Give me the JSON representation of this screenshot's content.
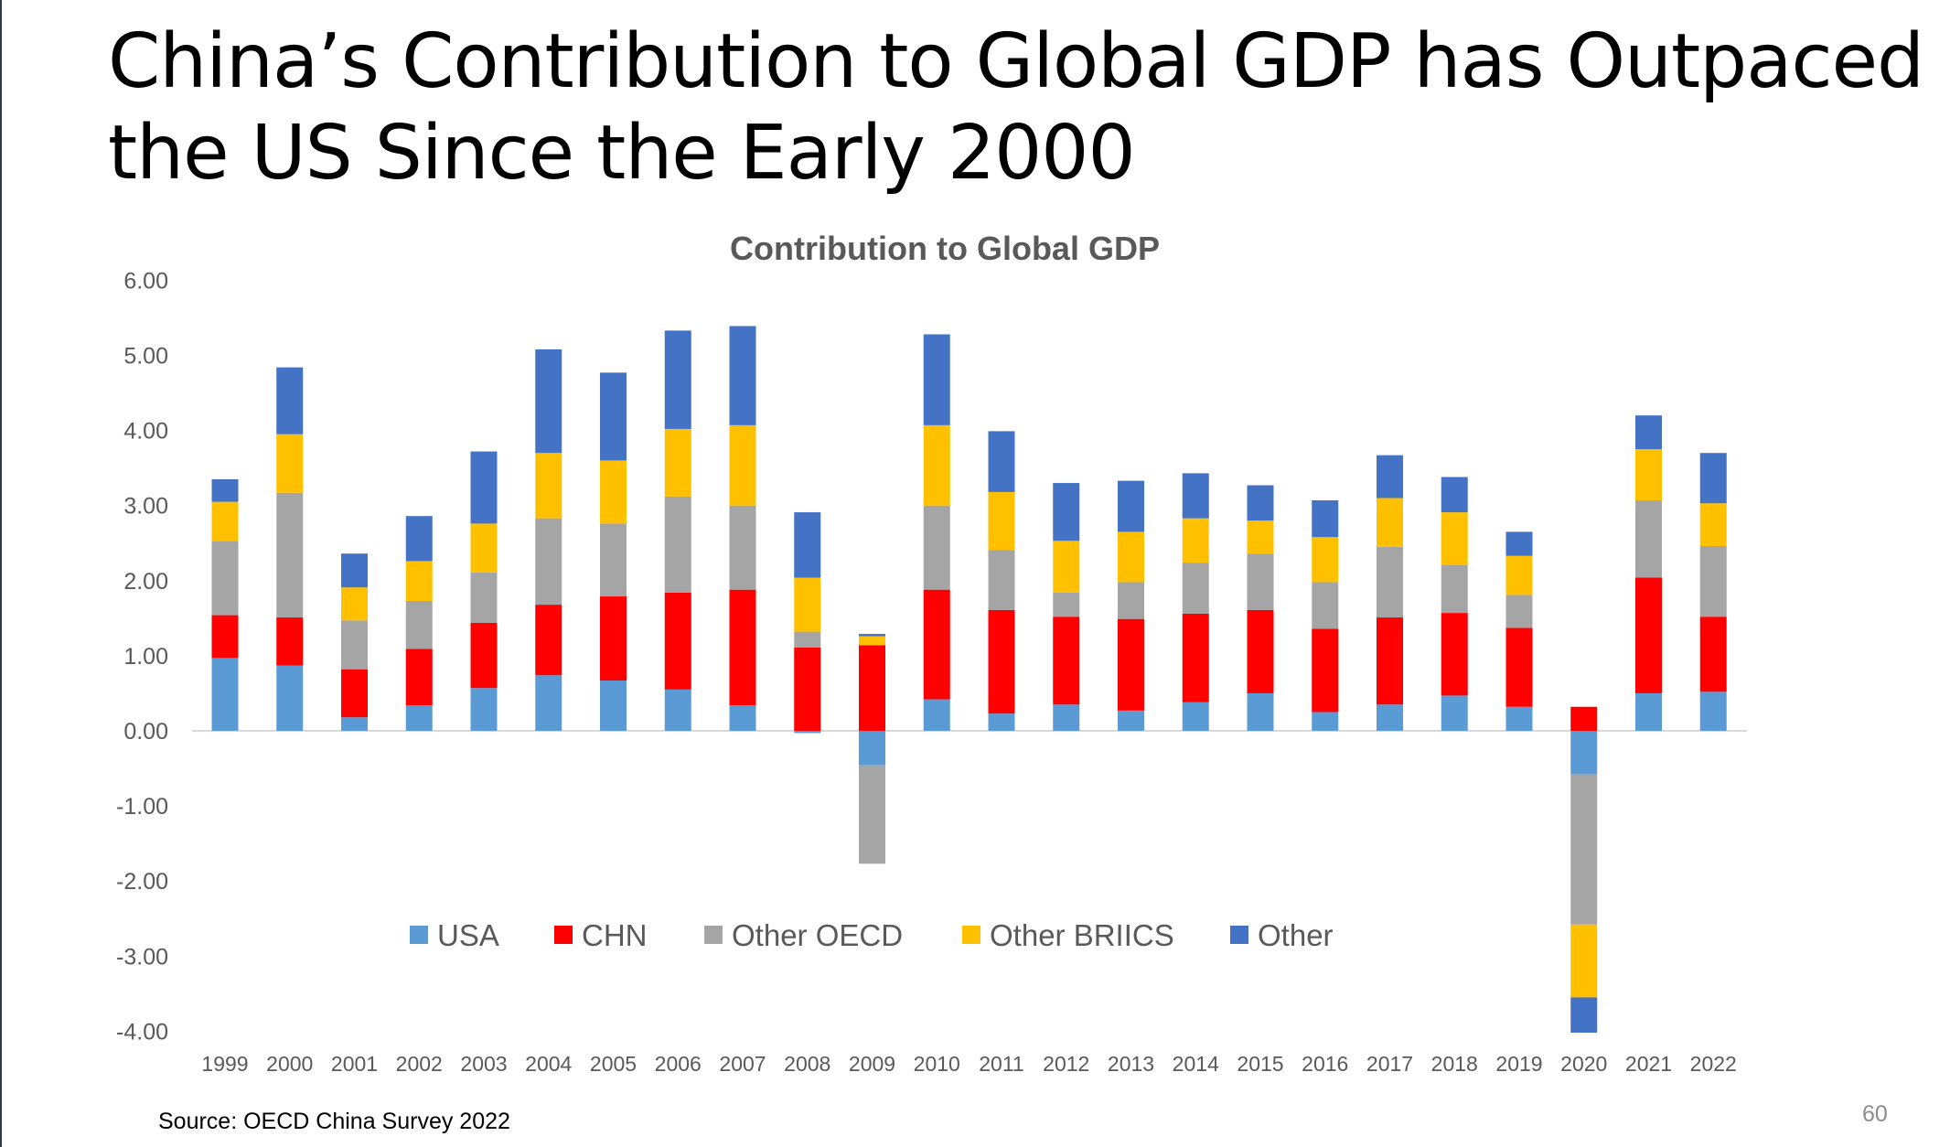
{
  "slide": {
    "title_line1": "China’s Contribution to Global GDP has Outpaced",
    "title_line2": "the US Since the Early 2000",
    "source": "Source: OECD China Survey 2022",
    "page_number": "60"
  },
  "chart_data": {
    "type": "bar",
    "stacked": true,
    "title": "Contribution to Global GDP",
    "xlabel": "",
    "ylabel": "",
    "ylim": [
      -4,
      6
    ],
    "yticks": [
      "6.00",
      "5.00",
      "4.00",
      "3.00",
      "2.00",
      "1.00",
      "0.00",
      "-1.00",
      "-2.00",
      "-3.00",
      "-4.00"
    ],
    "ytick_values": [
      6,
      5,
      4,
      3,
      2,
      1,
      0,
      -1,
      -2,
      -3,
      -4
    ],
    "grid": false,
    "legend_position": "bottom-inside",
    "categories": [
      "1999",
      "2000",
      "2001",
      "2002",
      "2003",
      "2004",
      "2005",
      "2006",
      "2007",
      "2008",
      "2009",
      "2010",
      "2011",
      "2012",
      "2013",
      "2014",
      "2015",
      "2016",
      "2017",
      "2018",
      "2019",
      "2020",
      "2021",
      "2022"
    ],
    "series": [
      {
        "name": "USA",
        "color": "#5b9bd5",
        "values": [
          0.97,
          0.87,
          0.18,
          0.34,
          0.57,
          0.74,
          0.67,
          0.55,
          0.34,
          -0.03,
          -0.46,
          0.42,
          0.23,
          0.35,
          0.27,
          0.38,
          0.5,
          0.25,
          0.35,
          0.47,
          0.32,
          -0.58,
          0.5,
          0.52
        ]
      },
      {
        "name": "CHN",
        "color": "#ff0000",
        "values": [
          0.57,
          0.64,
          0.64,
          0.75,
          0.87,
          0.94,
          1.12,
          1.29,
          1.54,
          1.11,
          1.14,
          1.46,
          1.38,
          1.17,
          1.22,
          1.18,
          1.11,
          1.11,
          1.16,
          1.1,
          1.05,
          0.32,
          1.54,
          1.0
        ]
      },
      {
        "name": "Other OECD",
        "color": "#a5a5a5",
        "values": [
          0.99,
          1.66,
          0.65,
          0.64,
          0.67,
          1.15,
          0.97,
          1.28,
          1.12,
          0.21,
          -1.31,
          1.12,
          0.8,
          0.32,
          0.49,
          0.68,
          0.75,
          0.62,
          0.94,
          0.64,
          0.44,
          -2.0,
          1.03,
          0.94
        ]
      },
      {
        "name": "Other BRIICS",
        "color": "#ffc000",
        "values": [
          0.52,
          0.78,
          0.44,
          0.53,
          0.65,
          0.87,
          0.84,
          0.9,
          1.07,
          0.72,
          0.12,
          1.07,
          0.77,
          0.69,
          0.67,
          0.59,
          0.44,
          0.6,
          0.65,
          0.7,
          0.52,
          -0.97,
          0.68,
          0.57
        ]
      },
      {
        "name": "Other",
        "color": "#4472c4",
        "values": [
          0.3,
          0.89,
          0.45,
          0.6,
          0.96,
          1.38,
          1.17,
          1.31,
          1.32,
          0.87,
          0.03,
          1.21,
          0.81,
          0.77,
          0.68,
          0.6,
          0.47,
          0.49,
          0.57,
          0.47,
          0.32,
          -0.47,
          0.45,
          0.67
        ]
      }
    ]
  }
}
